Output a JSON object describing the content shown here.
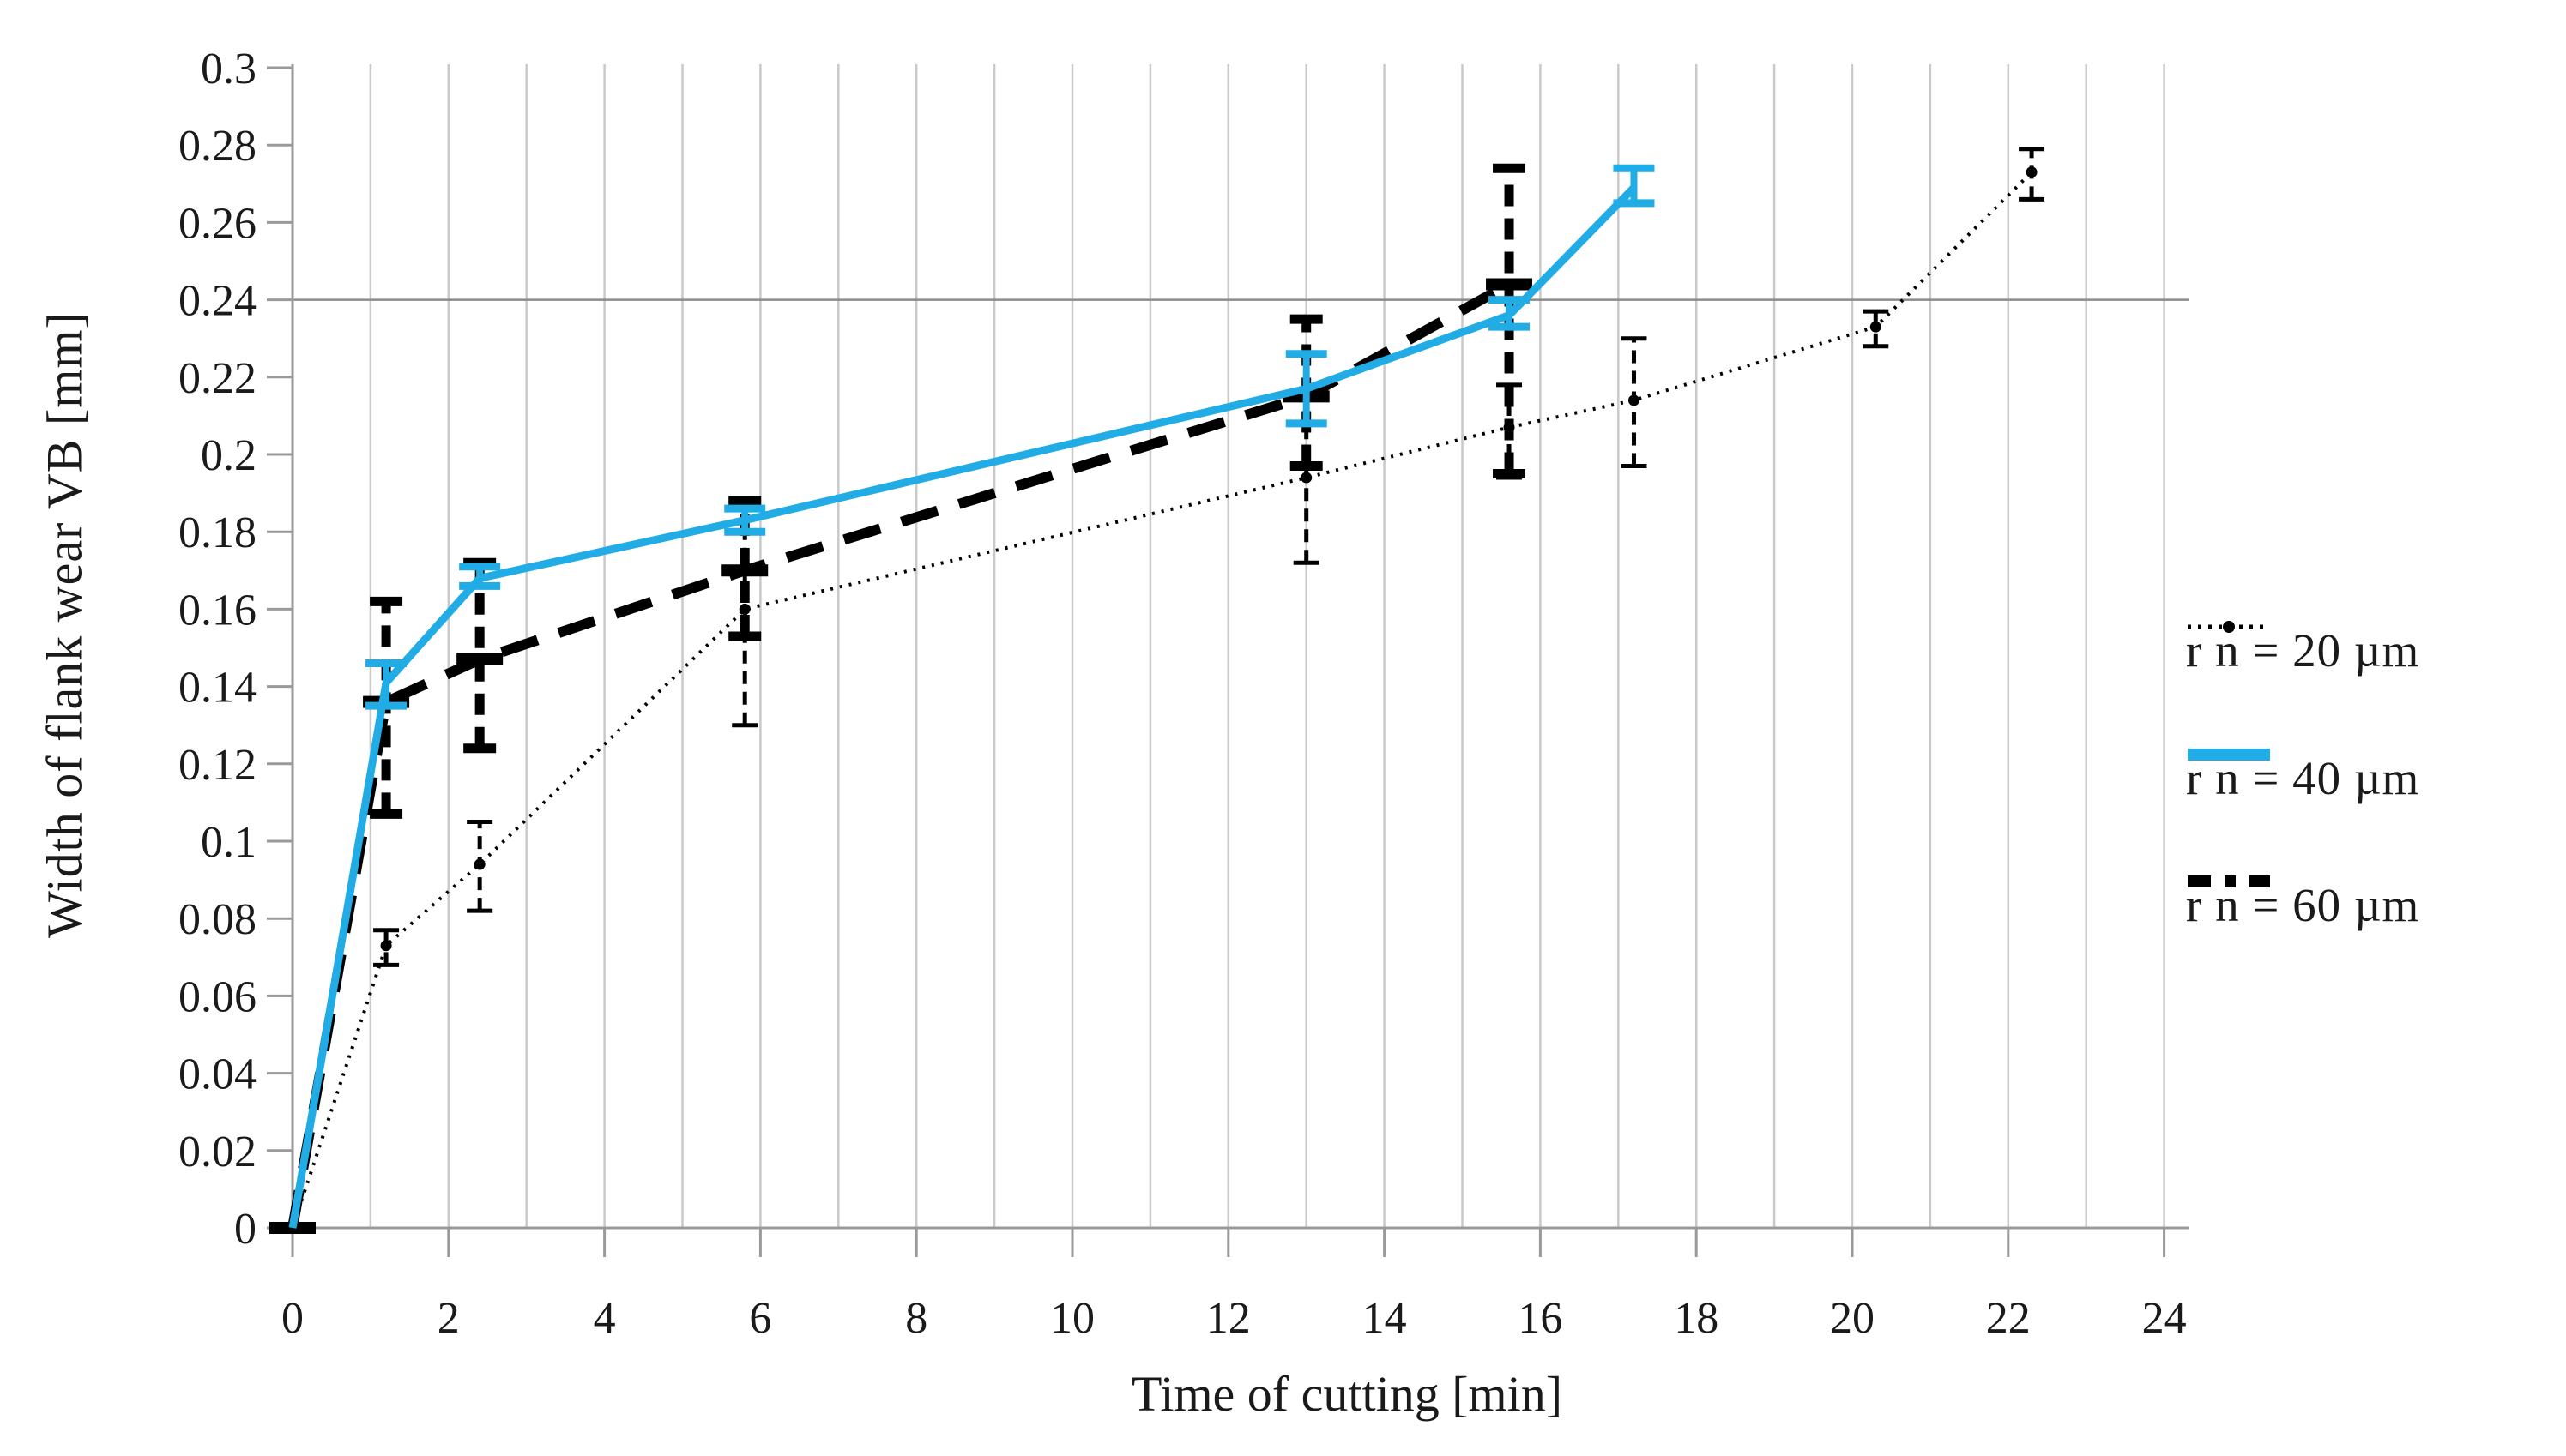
{
  "figure": {
    "background": "#ffffff"
  },
  "chart_data": {
    "type": "line",
    "title": "",
    "xlabel": "Time of cutting [min]",
    "ylabel": "Width of flank wear VB [mm]",
    "xlim": [
      0,
      24
    ],
    "ylim": [
      0,
      0.3
    ],
    "x_ticks": [
      0,
      2,
      4,
      6,
      8,
      10,
      12,
      14,
      16,
      18,
      20,
      22,
      24
    ],
    "x_minor_grid_step": 1,
    "y_ticks": [
      {
        "v": 0.0,
        "label": "0"
      },
      {
        "v": 0.02,
        "label": "0.02"
      },
      {
        "v": 0.04,
        "label": "0.04"
      },
      {
        "v": 0.06,
        "label": "0.06"
      },
      {
        "v": 0.08,
        "label": "0.08"
      },
      {
        "v": 0.1,
        "label": "0.1"
      },
      {
        "v": 0.12,
        "label": "0.12"
      },
      {
        "v": 0.14,
        "label": "0.14"
      },
      {
        "v": 0.16,
        "label": "0.16"
      },
      {
        "v": 0.18,
        "label": "0.18"
      },
      {
        "v": 0.2,
        "label": "0.2"
      },
      {
        "v": 0.22,
        "label": "0.22"
      },
      {
        "v": 0.24,
        "label": "0.24"
      },
      {
        "v": 0.26,
        "label": "0.26"
      },
      {
        "v": 0.28,
        "label": "0.28"
      },
      {
        "v": 0.3,
        "label": "0.3"
      }
    ],
    "grid": {
      "vertical_minor": true,
      "horizontal": false,
      "color": "#c9c9c9"
    },
    "axis_color": "#9a9a9a",
    "text_color": "#1a1a1a",
    "reference_line": {
      "y": 0.24,
      "color": "#8c8c8c"
    },
    "legend_position": "right-middle",
    "series": [
      {
        "name": "r n = 20 µm",
        "color": "#000000",
        "style": "dotted",
        "marker": "dot",
        "points": [
          {
            "x": 0,
            "y": 0
          },
          {
            "x": 1.2,
            "y": 0.073,
            "lo": 0.068,
            "hi": 0.077
          },
          {
            "x": 2.4,
            "y": 0.094,
            "lo": 0.082,
            "hi": 0.105
          },
          {
            "x": 5.8,
            "y": 0.16,
            "lo": 0.13,
            "hi": 0.188
          },
          {
            "x": 13.0,
            "y": 0.194,
            "lo": 0.172,
            "hi": 0.215
          },
          {
            "x": 15.6,
            "y": 0.207,
            "lo": 0.194,
            "hi": 0.218
          },
          {
            "x": 17.2,
            "y": 0.214,
            "lo": 0.197,
            "hi": 0.23
          },
          {
            "x": 20.3,
            "y": 0.233,
            "lo": 0.228,
            "hi": 0.237
          },
          {
            "x": 22.3,
            "y": 0.273,
            "lo": 0.266,
            "hi": 0.279
          }
        ]
      },
      {
        "name": "r n = 40 µm",
        "color": "#21ACE5",
        "style": "solid",
        "marker": "none",
        "points": [
          {
            "x": 0,
            "y": 0
          },
          {
            "x": 1.2,
            "y": 0.141,
            "lo": 0.135,
            "hi": 0.146
          },
          {
            "x": 2.4,
            "y": 0.168,
            "lo": 0.166,
            "hi": 0.171
          },
          {
            "x": 5.8,
            "y": 0.183,
            "lo": 0.18,
            "hi": 0.186
          },
          {
            "x": 13.0,
            "y": 0.217,
            "lo": 0.208,
            "hi": 0.226
          },
          {
            "x": 15.6,
            "y": 0.236,
            "lo": 0.233,
            "hi": 0.24
          },
          {
            "x": 17.2,
            "y": 0.269,
            "lo": 0.265,
            "hi": 0.274
          }
        ]
      },
      {
        "name": "r n = 60 µm",
        "color": "#000000",
        "style": "dashdot",
        "marker": "dash",
        "points": [
          {
            "x": 0,
            "y": 0
          },
          {
            "x": 1.2,
            "y": 0.136,
            "lo": 0.107,
            "hi": 0.162
          },
          {
            "x": 2.4,
            "y": 0.147,
            "lo": 0.124,
            "hi": 0.172
          },
          {
            "x": 5.8,
            "y": 0.17,
            "lo": 0.153,
            "hi": 0.188
          },
          {
            "x": 13.0,
            "y": 0.215,
            "lo": 0.197,
            "hi": 0.235
          },
          {
            "x": 15.6,
            "y": 0.244,
            "lo": 0.195,
            "hi": 0.274
          }
        ]
      }
    ]
  }
}
